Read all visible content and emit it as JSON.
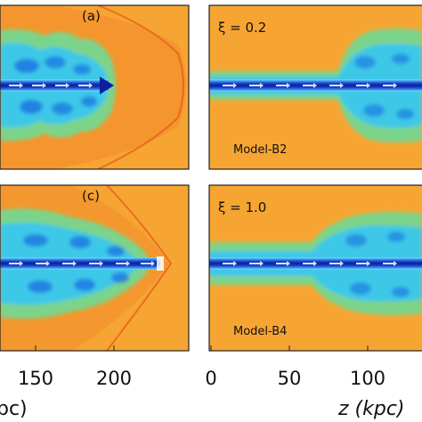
{
  "figure": {
    "colors": {
      "ambient": "#f7a532",
      "ambient_light": "#fbc35a",
      "shock": "#ee6a24",
      "cocoon_green": "#7bd48a",
      "cocoon_cyan": "#3cc8e8",
      "cocoon_blue": "#1a6fe0",
      "jet_core": "#0b1e9c",
      "jet_edge": "#6fe0ff",
      "frame": "#222222"
    },
    "panels": [
      {
        "id": "a",
        "label": "(a)",
        "annotation": "",
        "model": ""
      },
      {
        "id": "b",
        "label": "",
        "annotation": "ξ = 0.2",
        "model": "Model-B2"
      },
      {
        "id": "c",
        "label": "(c)",
        "annotation": "",
        "model": ""
      },
      {
        "id": "d",
        "label": "",
        "annotation": "ξ = 1.0",
        "model": "Model-B4"
      }
    ],
    "x_ticks_left": [
      "150",
      "200"
    ],
    "x_ticks_right": [
      "0",
      "50",
      "100"
    ],
    "xlabel_left_fragment": "pc)",
    "xlabel_right": "z (kpc)"
  }
}
